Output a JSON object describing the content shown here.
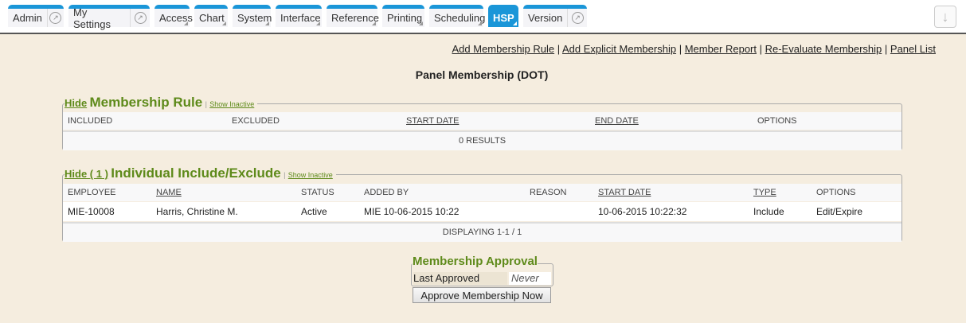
{
  "tabs": [
    {
      "label": "Admin",
      "w": 70,
      "circ": true
    },
    {
      "label": "My Settings",
      "w": 102,
      "circ": true
    },
    {
      "label": "Access",
      "w": 44
    },
    {
      "label": "Chart",
      "w": 42
    },
    {
      "label": "System",
      "w": 48
    },
    {
      "label": "Interface",
      "w": 58
    },
    {
      "label": "Reference",
      "w": 64
    },
    {
      "label": "Printing",
      "w": 53
    },
    {
      "label": "Scheduling",
      "w": 68
    },
    {
      "label": "HSP",
      "w": 38,
      "active": true
    },
    {
      "label": "Version",
      "w": 80,
      "circ": true
    }
  ],
  "download_icon": "arrow-down-icon",
  "links": [
    "Add Membership Rule",
    "Add Explicit Membership",
    "Member Report",
    "Re-Evaluate Membership",
    "Panel List"
  ],
  "title": "Panel Membership (DOT)",
  "rule": {
    "hide": "Hide",
    "heading": "Membership Rule",
    "show_inactive": "Show Inactive",
    "columns": [
      "INCLUDED",
      "EXCLUDED",
      "START DATE",
      "END DATE",
      "OPTIONS"
    ],
    "footer": "0 RESULTS"
  },
  "individual": {
    "hide": "Hide ( 1 )",
    "heading": "Individual Include/Exclude",
    "show_inactive": "Show Inactive",
    "columns": [
      "EMPLOYEE",
      "NAME",
      "STATUS",
      "ADDED BY",
      "REASON",
      "START DATE",
      "TYPE",
      "OPTIONS"
    ],
    "rows": [
      [
        "MIE-10008",
        "Harris, Christine M.",
        "Active",
        "MIE 10-06-2015 10:22",
        "",
        "10-06-2015 10:22:32",
        "Include",
        "Edit/Expire"
      ]
    ],
    "footer": "DISPLAYING 1-1 / 1"
  },
  "approval": {
    "heading": "Membership Approval",
    "label": "Last Approved",
    "value": "Never",
    "button": "Approve Membership Now"
  }
}
